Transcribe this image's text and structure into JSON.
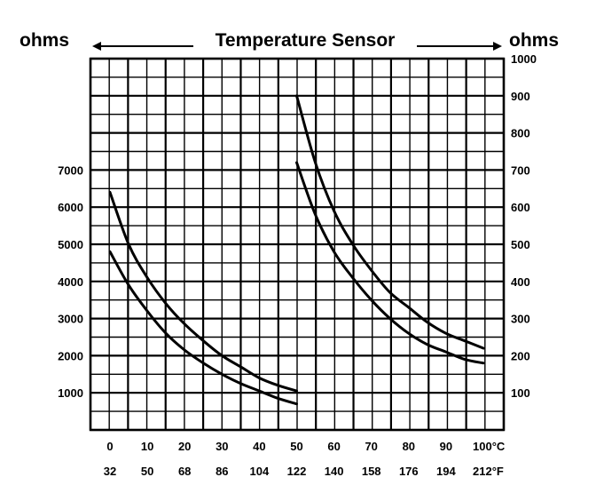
{
  "chart_data": {
    "type": "line",
    "title": "Temperature Sensor",
    "left_axis_label": "ohms",
    "right_axis_label": "ohms",
    "x_celsius_ticks": [
      "0",
      "10",
      "20",
      "30",
      "40",
      "50",
      "60",
      "70",
      "80",
      "90",
      "100°C"
    ],
    "x_fahrenheit_ticks": [
      "32",
      "50",
      "68",
      "86",
      "104",
      "122",
      "140",
      "158",
      "176",
      "194",
      "212°F"
    ],
    "left_y_ticks": [
      "7000",
      "6000",
      "5000",
      "4000",
      "3000",
      "2000",
      "1000"
    ],
    "right_y_ticks": [
      "1000",
      "900",
      "800",
      "700",
      "600",
      "500",
      "400",
      "300",
      "200",
      "100"
    ],
    "left_ylim": [
      0,
      10000
    ],
    "right_ylim": [
      0,
      1000
    ],
    "xlim": [
      0,
      100
    ],
    "grid": true,
    "series": [
      {
        "axis": "left",
        "x": [
          0,
          5,
          10,
          15,
          20,
          25,
          30,
          35,
          40,
          45,
          50
        ],
        "values": [
          6400,
          5000,
          4100,
          3400,
          2850,
          2400,
          2000,
          1700,
          1400,
          1200,
          1050
        ]
      },
      {
        "axis": "left",
        "x": [
          0,
          5,
          10,
          15,
          20,
          25,
          30,
          35,
          40,
          45,
          50
        ],
        "values": [
          4800,
          3900,
          3200,
          2600,
          2150,
          1800,
          1500,
          1250,
          1050,
          850,
          700
        ]
      },
      {
        "axis": "right",
        "x": [
          50,
          55,
          60,
          65,
          70,
          75,
          80,
          85,
          90,
          95,
          100
        ],
        "values": [
          900,
          720,
          590,
          500,
          430,
          370,
          330,
          290,
          260,
          240,
          220
        ]
      },
      {
        "axis": "right",
        "x": [
          50,
          55,
          60,
          65,
          70,
          75,
          80,
          85,
          90,
          95,
          100
        ],
        "values": [
          720,
          580,
          480,
          410,
          350,
          300,
          260,
          230,
          210,
          190,
          180
        ]
      }
    ]
  }
}
